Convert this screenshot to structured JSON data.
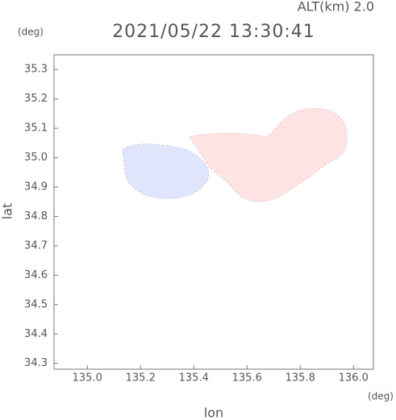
{
  "chart_data": {
    "type": "map",
    "title": "2021/05/22 13:30:41",
    "annotation": "ALT(km)  2.0",
    "x_label": "lon",
    "y_label": "lat",
    "x_unit": "(deg)",
    "y_unit": "(deg)",
    "xlim": [
      134.875,
      136.075
    ],
    "ylim": [
      34.28,
      35.35
    ],
    "xticks": [
      {
        "value": 135,
        "label": "135.0"
      },
      135.2,
      135.4,
      135.6,
      135.8,
      {
        "value": 136,
        "label": "136.0"
      }
    ],
    "yticks": [
      35.3,
      35.2,
      35.1,
      {
        "value": 35,
        "label": "35.0"
      },
      34.9,
      34.8,
      34.7,
      34.6,
      34.5,
      34.4,
      34.3
    ]
  }
}
